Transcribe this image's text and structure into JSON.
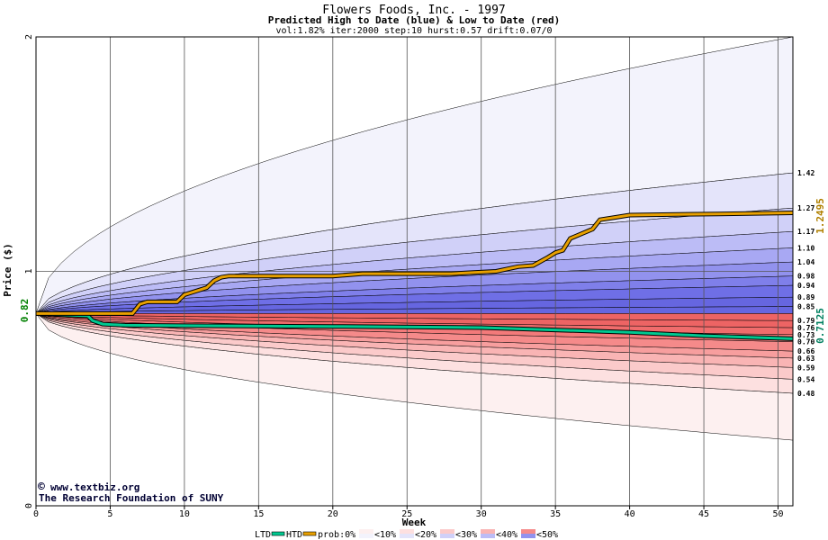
{
  "chart_data": {
    "type": "area",
    "title": "Flowers Foods, Inc. - 1997",
    "subtitle": "Predicted High to Date (blue) &  Low to Date (red)",
    "params": "vol:1.82% iter:2000 step:10 hurst:0.57 drift:0.07/0",
    "xlabel": "Week",
    "ylabel": "Price ($)",
    "xlim": [
      0,
      51
    ],
    "ylim": [
      0,
      2
    ],
    "x_ticks": [
      "0",
      "5",
      "10",
      "15",
      "20",
      "25",
      "30",
      "35",
      "40",
      "45",
      "50"
    ],
    "y_ticks": [
      "0",
      "1",
      "2"
    ],
    "start_price_label": "0.82",
    "start_price": 0.82,
    "htd_final_label": "1.2495",
    "ltd_final_label": "0.7125",
    "band_labels": [
      "1.42",
      "1.27",
      "1.17",
      "1.10",
      "1.04",
      "0.98",
      "0.94",
      "0.89",
      "0.85",
      "0.79",
      "0.76",
      "0.73",
      "0.70",
      "0.66",
      "0.63",
      "0.59",
      "0.54",
      "0.48"
    ],
    "band_values": [
      1.42,
      1.27,
      1.17,
      1.1,
      1.04,
      0.98,
      0.94,
      0.89,
      0.85,
      0.79,
      0.76,
      0.73,
      0.7,
      0.66,
      0.63,
      0.59,
      0.54,
      0.48
    ],
    "high_envelope": {
      "max_end": 2.0,
      "bands_end": [
        1.42,
        1.27,
        1.17,
        1.1,
        1.04,
        0.98,
        0.94,
        0.89,
        0.85
      ]
    },
    "low_envelope": {
      "min_end": 0.28,
      "bands_end": [
        0.79,
        0.76,
        0.73,
        0.7,
        0.66,
        0.63,
        0.59,
        0.54,
        0.48
      ]
    },
    "htd_series": {
      "name": "HTD",
      "color": "#e8a000",
      "points": [
        [
          0,
          0.82
        ],
        [
          6.5,
          0.82
        ],
        [
          7,
          0.86
        ],
        [
          7.5,
          0.87
        ],
        [
          9.5,
          0.87
        ],
        [
          10,
          0.9
        ],
        [
          10.5,
          0.91
        ],
        [
          11,
          0.92
        ],
        [
          11.5,
          0.93
        ],
        [
          12,
          0.96
        ],
        [
          12.5,
          0.975
        ],
        [
          13,
          0.98
        ],
        [
          20,
          0.98
        ],
        [
          22,
          0.99
        ],
        [
          28,
          0.99
        ],
        [
          29.5,
          0.995
        ],
        [
          31,
          1.0
        ],
        [
          32.5,
          1.02
        ],
        [
          33.5,
          1.025
        ],
        [
          34.5,
          1.06
        ],
        [
          35,
          1.08
        ],
        [
          35.5,
          1.09
        ],
        [
          36,
          1.14
        ],
        [
          37.5,
          1.18
        ],
        [
          38,
          1.22
        ],
        [
          39,
          1.23
        ],
        [
          40,
          1.24
        ],
        [
          46,
          1.245
        ],
        [
          51,
          1.2495
        ]
      ]
    },
    "ltd_series": {
      "name": "LTD",
      "color": "#00c890",
      "points": [
        [
          0,
          0.82
        ],
        [
          3.5,
          0.81
        ],
        [
          3.8,
          0.79
        ],
        [
          4.5,
          0.775
        ],
        [
          6,
          0.77
        ],
        [
          10,
          0.768
        ],
        [
          20,
          0.765
        ],
        [
          30,
          0.76
        ],
        [
          40,
          0.74
        ],
        [
          45,
          0.725
        ],
        [
          51,
          0.7125
        ]
      ]
    },
    "credit_1": "www.textbiz.org",
    "credit_2": "The Research Foundation of SUNY",
    "legend": {
      "ltd": "LTD",
      "htd": "HTD",
      "prob": "prob:0%",
      "bins": [
        "<10%",
        "<20%",
        "<30%",
        "<40%",
        "<50%"
      ]
    },
    "colors": {
      "blue_bands": [
        "#f3f3fc",
        "#e4e4fa",
        "#d0d0f8",
        "#bcbcf6",
        "#a8a8f3",
        "#9292ee",
        "#7f7fea",
        "#6f6fe6",
        "#6666e0"
      ],
      "red_bands": [
        "#fdf0f0",
        "#fde0e0",
        "#fbcaca",
        "#f9b4b4",
        "#f79e9e",
        "#f58a8a",
        "#f37a7a",
        "#f06c6c",
        "#ed6464"
      ],
      "htd_line": "#e8a000",
      "ltd_line": "#00c890",
      "start_label": "#008000",
      "htd_label": "#b08000",
      "ltd_label": "#008060"
    }
  }
}
